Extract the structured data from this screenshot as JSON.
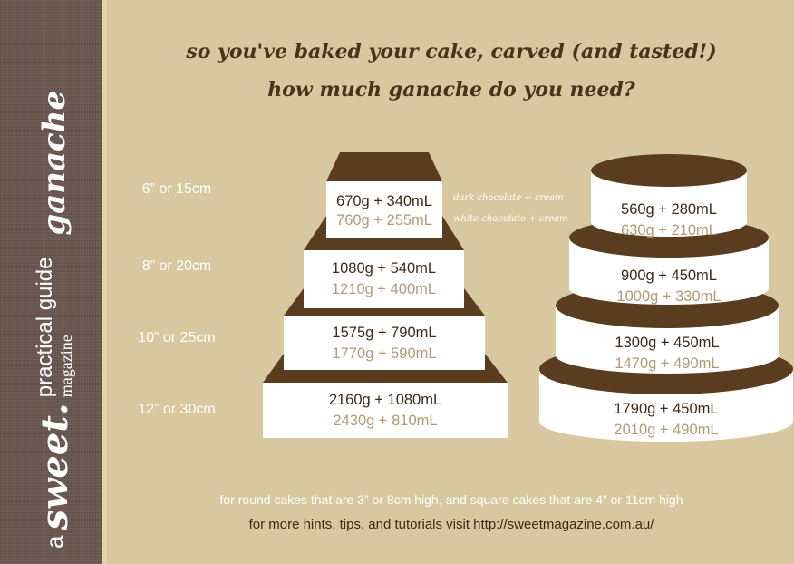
{
  "sidebar": {
    "a": "a",
    "sweet": "sweet.",
    "practical_guide": "practical guide",
    "magazine": "magazine",
    "ganache": "ganache"
  },
  "title": {
    "line1": "so you've baked your cake, carved (and tasted!)",
    "line2": "how much ganache do you need?"
  },
  "legend": {
    "dark": "dark chocolate + cream",
    "white": "white chocolate + cream"
  },
  "sizes": [
    "6” or 15cm",
    "8” or 20cm",
    "10” or 25cm",
    "12” or 30cm"
  ],
  "square": [
    {
      "dark": "670g + 340mL",
      "white": "760g + 255mL"
    },
    {
      "dark": "1080g + 540mL",
      "white": "1210g + 400mL"
    },
    {
      "dark": "1575g + 790mL",
      "white": "1770g + 590mL"
    },
    {
      "dark": "2160g + 1080mL",
      "white": "2430g + 810mL"
    }
  ],
  "round": [
    {
      "dark": "560g + 280mL",
      "white": "630g + 210mL"
    },
    {
      "dark": "900g + 450mL",
      "white": "1000g + 330mL"
    },
    {
      "dark": "1300g + 450mL",
      "white": "1470g + 490mL"
    },
    {
      "dark": "1790g + 450mL",
      "white": "2010g + 490mL"
    }
  ],
  "footer": {
    "note": "for round cakes that are 3” or 8cm high, and square cakes that are 4” or 11cm high",
    "link": "for more hints, tips, and tutorials visit http://sweetmagazine.com.au/"
  },
  "colors": {
    "chocolate": "#5a3c1f",
    "background": "#d7c89f",
    "sidebar": "#6a5850",
    "white_text": "#b39a74"
  }
}
